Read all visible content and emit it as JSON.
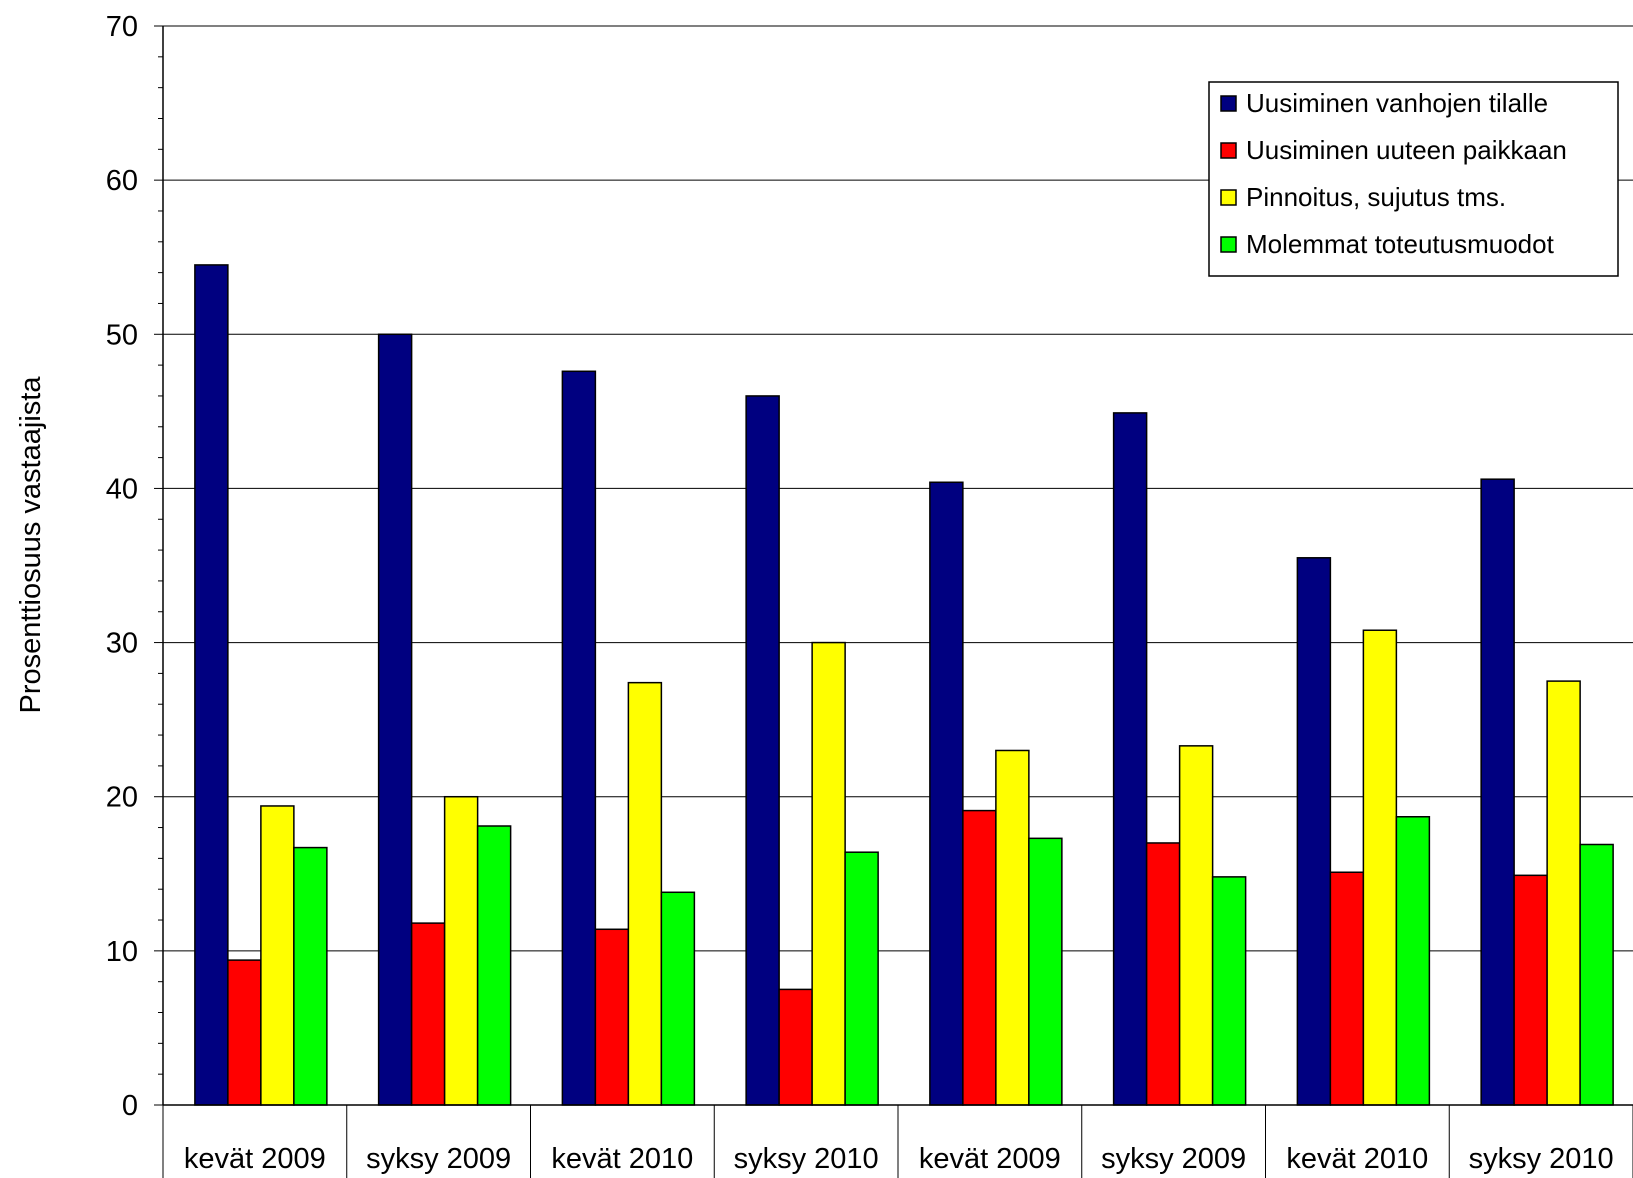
{
  "chart_data": {
    "type": "bar",
    "title": "",
    "xlabel": "",
    "ylabel": "Prosenttiosuus vastaajista",
    "ylim": [
      0,
      70
    ],
    "yticks": [
      0,
      10,
      20,
      30,
      40,
      50,
      60,
      70
    ],
    "grid": true,
    "legend_position": "top-right",
    "categories": [
      "kevät 2009",
      "syksy 2009",
      "kevät 2010",
      "syksy 2010",
      "kevät 2009",
      "syksy 2009",
      "kevät 2010",
      "syksy 2010"
    ],
    "series": [
      {
        "name": "Uusiminen vanhojen tilalle",
        "color": "#000080",
        "values": [
          54.5,
          50.0,
          47.6,
          46.0,
          40.4,
          44.9,
          35.5,
          40.6
        ]
      },
      {
        "name": "Uusiminen uuteen paikkaan",
        "color": "#ff0000",
        "values": [
          9.4,
          11.8,
          11.4,
          7.5,
          19.1,
          17.0,
          15.1,
          14.9
        ]
      },
      {
        "name": "Pinnoitus, sujutus tms.",
        "color": "#ffff00",
        "values": [
          19.4,
          20.0,
          27.4,
          30.0,
          23.0,
          23.3,
          30.8,
          27.5
        ]
      },
      {
        "name": "Molemmat toteutusmuodot",
        "color": "#00ff00",
        "values": [
          16.7,
          18.1,
          13.8,
          16.4,
          17.3,
          14.8,
          18.7,
          16.9
        ]
      }
    ]
  }
}
